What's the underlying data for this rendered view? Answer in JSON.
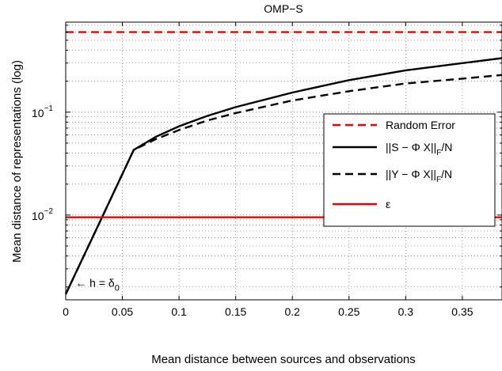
{
  "chart_data": {
    "type": "line",
    "title": "OMP−S",
    "xlabel": "Mean distance between sources and observations",
    "ylabel": "Mean distance of representations (log)",
    "xlim": [
      0,
      0.385
    ],
    "ylim": [
      0.0015,
      0.75
    ],
    "yscale": "log",
    "grid": true,
    "x_ticks": [
      "0",
      "0.05",
      "0.1",
      "0.15",
      "0.2",
      "0.25",
      "0.3",
      "0.35"
    ],
    "y_ticks": [
      {
        "base": "10",
        "exp": "−2",
        "value": 0.01
      },
      {
        "base": "10",
        "exp": "−1",
        "value": 0.1
      }
    ],
    "legend": {
      "position": "right",
      "entries": [
        {
          "label": "Random Error",
          "color": "#ee0000",
          "dash": "dashed"
        },
        {
          "label": "||S − Φ X||",
          "sub": "F",
          "suffix": "/N",
          "color": "#000000",
          "dash": "solid"
        },
        {
          "label": "||Y − Φ X||",
          "sub": "F",
          "suffix": "/N",
          "color": "#000000",
          "dash": "dashed"
        },
        {
          "label": "ε",
          "color": "#ee0000",
          "dash": "solid"
        }
      ]
    },
    "annotation": {
      "text": "← h = δ",
      "sub": "0",
      "x": 0.003,
      "y": 0.0022
    },
    "series": [
      {
        "name": "Random Error",
        "color": "#ee0000",
        "dash": "dashed",
        "x": [
          0,
          0.385
        ],
        "y": [
          0.6,
          0.6
        ]
      },
      {
        "name": "||S − Φ X||F/N",
        "color": "#000000",
        "dash": "solid",
        "x": [
          0,
          0.03,
          0.06,
          0.08,
          0.1,
          0.125,
          0.15,
          0.2,
          0.25,
          0.3,
          0.35,
          0.385
        ],
        "y": [
          0.0017,
          0.0085,
          0.043,
          0.058,
          0.073,
          0.092,
          0.112,
          0.155,
          0.205,
          0.255,
          0.3,
          0.335
        ]
      },
      {
        "name": "||Y − Φ X||F/N",
        "color": "#000000",
        "dash": "dashed",
        "x": [
          0,
          0.03,
          0.06,
          0.08,
          0.1,
          0.125,
          0.15,
          0.2,
          0.25,
          0.3,
          0.35,
          0.385
        ],
        "y": [
          0.0017,
          0.0085,
          0.043,
          0.055,
          0.067,
          0.083,
          0.098,
          0.13,
          0.16,
          0.19,
          0.212,
          0.23
        ]
      },
      {
        "name": "ε",
        "color": "#ee0000",
        "dash": "solid",
        "x": [
          0,
          0.385
        ],
        "y": [
          0.0095,
          0.0095
        ]
      }
    ]
  }
}
